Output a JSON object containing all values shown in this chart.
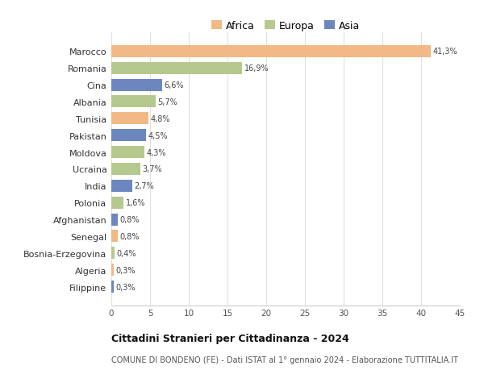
{
  "categories": [
    "Marocco",
    "Romania",
    "Cina",
    "Albania",
    "Tunisia",
    "Pakistan",
    "Moldova",
    "Ucraina",
    "India",
    "Polonia",
    "Afghanistan",
    "Senegal",
    "Bosnia-Erzegovina",
    "Algeria",
    "Filippine"
  ],
  "values": [
    41.3,
    16.9,
    6.6,
    5.7,
    4.8,
    4.5,
    4.3,
    3.7,
    2.7,
    1.6,
    0.8,
    0.8,
    0.4,
    0.3,
    0.3
  ],
  "colors": [
    "#f0b985",
    "#b5c98e",
    "#6b87be",
    "#b5c98e",
    "#f0b985",
    "#6b87be",
    "#b5c98e",
    "#b5c98e",
    "#6b87be",
    "#b5c98e",
    "#6b87be",
    "#f0b985",
    "#b5c98e",
    "#f0b985",
    "#6b87be"
  ],
  "labels": [
    "41,3%",
    "16,9%",
    "6,6%",
    "5,7%",
    "4,8%",
    "4,5%",
    "4,3%",
    "3,7%",
    "2,7%",
    "1,6%",
    "0,8%",
    "0,8%",
    "0,4%",
    "0,3%",
    "0,3%"
  ],
  "legend_labels": [
    "Africa",
    "Europa",
    "Asia"
  ],
  "legend_colors": [
    "#f0b985",
    "#b5c98e",
    "#6b87be"
  ],
  "title": "Cittadini Stranieri per Cittadinanza - 2024",
  "subtitle": "COMUNE DI BONDENO (FE) - Dati ISTAT al 1° gennaio 2024 - Elaborazione TUTTITALIA.IT",
  "xlim": [
    0,
    45
  ],
  "xticks": [
    0,
    5,
    10,
    15,
    20,
    25,
    30,
    35,
    40,
    45
  ],
  "background_color": "#ffffff",
  "grid_color": "#e0e0e0"
}
